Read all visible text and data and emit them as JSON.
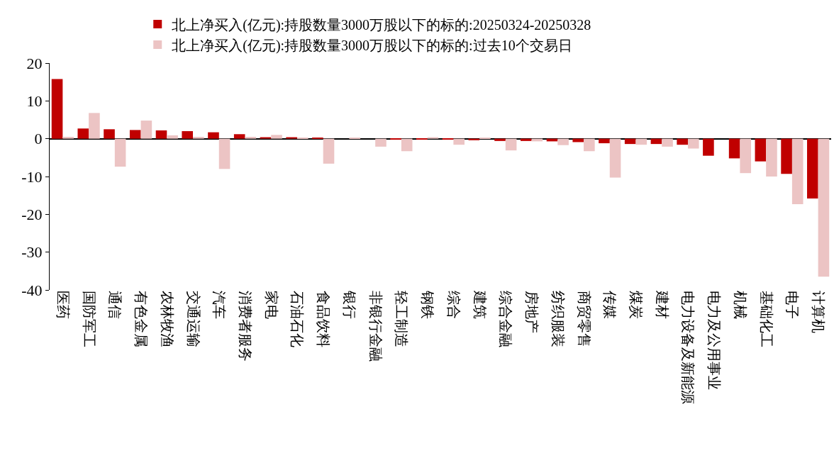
{
  "chart_data": {
    "type": "bar",
    "categories": [
      "医药",
      "国防军工",
      "通信",
      "有色金属",
      "农林牧渔",
      "交通运输",
      "汽车",
      "消费者服务",
      "家电",
      "石油石化",
      "食品饮料",
      "银行",
      "非银行金融",
      "轻工制造",
      "钢铁",
      "综合",
      "建筑",
      "综合金融",
      "房地产",
      "纺织服装",
      "商贸零售",
      "传媒",
      "煤炭",
      "建材",
      "电力设备及新能源",
      "电力及公用事业",
      "机械",
      "基础化工",
      "电子",
      "计算机"
    ],
    "series": [
      {
        "name": "北上净买入(亿元):持股数量3000万股以下的标的:20250324-20250328",
        "color": "#c00000",
        "values": [
          15.8,
          2.7,
          2.5,
          2.3,
          2.2,
          2.0,
          1.7,
          1.2,
          0.4,
          0.4,
          0.3,
          0,
          0,
          -0.2,
          -0.2,
          -0.2,
          -0.4,
          -0.6,
          -0.6,
          -0.7,
          -0.9,
          -1.2,
          -1.4,
          -1.4,
          -1.6,
          -4.5,
          -5.2,
          -6.0,
          -9.3,
          -15.8
        ]
      },
      {
        "name": "北上净买入(亿元):持股数量3000万股以下的标的:过去10个交易日",
        "color": "#ecc4c4",
        "values": [
          0.5,
          6.8,
          -7.4,
          4.8,
          0.9,
          0.5,
          -8.0,
          0.5,
          1.0,
          0.3,
          -6.6,
          0.3,
          -2.1,
          -3.3,
          0.4,
          -1.6,
          0.3,
          -3.1,
          -0.7,
          -1.7,
          -3.3,
          -10.3,
          -1.6,
          -2.1,
          -2.6,
          0,
          -9.1,
          -10.0,
          -17.3,
          -36.5
        ]
      }
    ],
    "ylim": [
      -40,
      20
    ],
    "yticks": [
      -40,
      -30,
      -20,
      -10,
      0,
      10,
      20
    ],
    "legend": "top"
  }
}
